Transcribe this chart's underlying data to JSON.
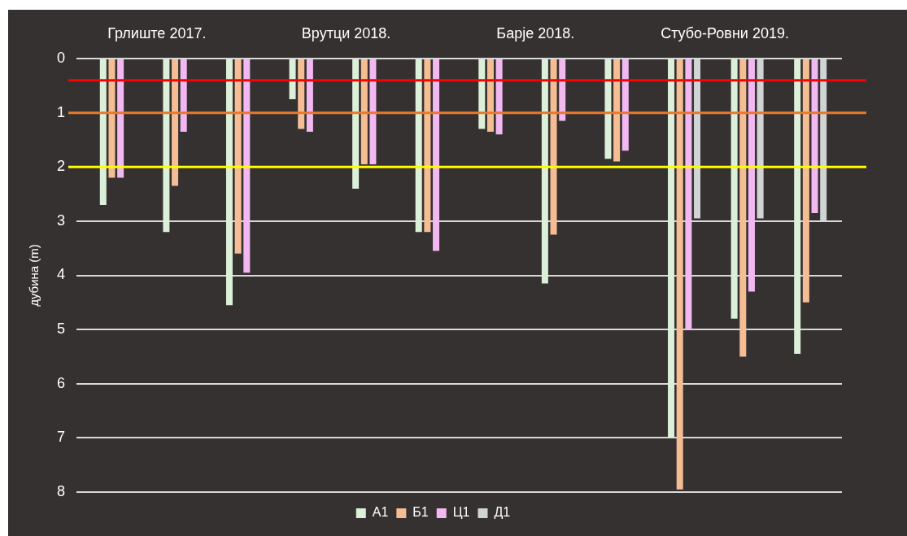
{
  "chart_data": {
    "type": "bar",
    "ylabel": "дубина (m)",
    "annotations": [
      "Грлиште 2017.",
      "Врутци 2018.",
      "Барје 2018.",
      "Стубо-Ровни 2019."
    ],
    "categories": [
      null,
      null,
      null,
      null,
      null,
      null,
      null,
      null,
      null,
      null,
      null,
      null
    ],
    "series": [
      {
        "name": "А1",
        "color": "#dcefd8",
        "values": [
          2.7,
          3.2,
          4.55,
          0.75,
          2.4,
          3.2,
          1.3,
          4.15,
          1.85,
          7.0,
          4.8,
          5.45
        ]
      },
      {
        "name": "Б1",
        "color": "#f5bd94",
        "values": [
          2.2,
          2.35,
          3.6,
          1.3,
          1.95,
          3.2,
          1.35,
          3.25,
          1.9,
          7.95,
          5.5,
          4.5
        ]
      },
      {
        "name": "Ц1",
        "color": "#f2b8f2",
        "values": [
          2.2,
          1.35,
          3.95,
          1.35,
          1.95,
          3.55,
          1.4,
          1.15,
          1.7,
          5.0,
          4.3,
          2.85
        ]
      },
      {
        "name": "Д1",
        "color": "#d0d4d4",
        "values": [
          null,
          null,
          null,
          null,
          null,
          null,
          null,
          null,
          null,
          2.95,
          2.95,
          3.0
        ]
      }
    ],
    "ylim": [
      8,
      0
    ],
    "yticks": [
      0,
      1,
      2,
      3,
      4,
      5,
      6,
      7,
      8
    ],
    "grid": "y",
    "tick_labels": "y",
    "legend": "bottom",
    "ref_lines": [
      {
        "axis": "y",
        "value": 0.4,
        "color": "#ff0000"
      },
      {
        "axis": "y",
        "value": 1,
        "color": "#e8792b"
      },
      {
        "axis": "y",
        "value": 2,
        "color": "#ffff00"
      }
    ]
  }
}
